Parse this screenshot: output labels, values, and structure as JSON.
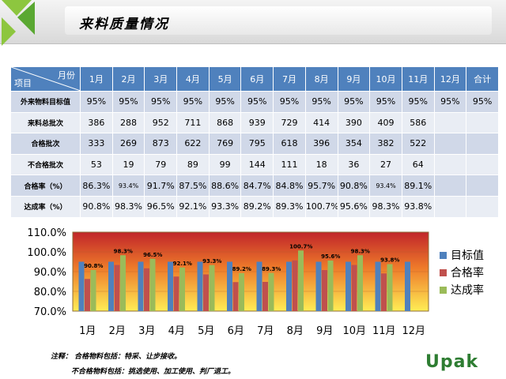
{
  "header": {
    "title": "来料质量情况"
  },
  "table": {
    "corner_top": "月份",
    "corner_bottom": "项目",
    "months": [
      "1月",
      "2月",
      "3月",
      "4月",
      "5月",
      "6月",
      "7月",
      "8月",
      "9月",
      "10月",
      "11月",
      "12月",
      "合计"
    ],
    "rows": [
      {
        "label": "外来物料目标值",
        "cells": [
          "95%",
          "95%",
          "95%",
          "95%",
          "95%",
          "95%",
          "95%",
          "95%",
          "95%",
          "95%",
          "95%",
          "95%",
          "95%"
        ]
      },
      {
        "label": "来料总批次",
        "cells": [
          "386",
          "288",
          "952",
          "711",
          "868",
          "939",
          "729",
          "414",
          "390",
          "409",
          "586",
          "",
          ""
        ]
      },
      {
        "label": "合格批次",
        "cells": [
          "333",
          "269",
          "873",
          "622",
          "769",
          "795",
          "618",
          "396",
          "354",
          "382",
          "522",
          "",
          ""
        ]
      },
      {
        "label": "不合格批次",
        "cells": [
          "53",
          "19",
          "79",
          "89",
          "99",
          "144",
          "111",
          "18",
          "36",
          "27",
          "64",
          "",
          ""
        ]
      },
      {
        "label": "合格率（%）",
        "cells": [
          "86.3%",
          "93.4%",
          "91.7%",
          "87.5%",
          "88.6%",
          "84.7%",
          "84.8%",
          "95.7%",
          "90.8%",
          "93.4%",
          "89.1%",
          "",
          ""
        ]
      },
      {
        "label": "达成率（%）",
        "cells": [
          "90.8%",
          "98.3%",
          "96.5%",
          "92.1%",
          "93.3%",
          "89.2%",
          "89.3%",
          "100.7%",
          "95.6%",
          "98.3%",
          "93.8%",
          "",
          ""
        ]
      }
    ]
  },
  "chart_data": {
    "type": "bar",
    "categories": [
      "1月",
      "2月",
      "3月",
      "4月",
      "5月",
      "6月",
      "7月",
      "8月",
      "9月",
      "10月",
      "11月",
      "12月"
    ],
    "ylim": [
      70,
      110
    ],
    "yticks": [
      "70.0%",
      "80.0%",
      "90.0%",
      "100.0%",
      "110.0%"
    ],
    "series": [
      {
        "name": "目标值",
        "color": "#4f81bd",
        "values": [
          95,
          95,
          95,
          95,
          95,
          95,
          95,
          95,
          95,
          95,
          95,
          95
        ]
      },
      {
        "name": "合格率",
        "color": "#c0504d",
        "values": [
          86.3,
          93.4,
          91.7,
          87.5,
          88.6,
          84.7,
          84.8,
          95.7,
          90.8,
          93.4,
          89.1,
          null
        ]
      },
      {
        "name": "达成率",
        "color": "#9bbb59",
        "values": [
          90.8,
          98.3,
          96.5,
          92.1,
          93.3,
          89.2,
          89.3,
          100.7,
          95.6,
          98.3,
          93.8,
          null
        ]
      }
    ],
    "data_labels": [
      "90.8%",
      "98.3%",
      "96.5%",
      "92.1%",
      "93.3%",
      "89.2%",
      "89.3%",
      "100.7%",
      "95.6%",
      "98.3%",
      "93.8%",
      ""
    ],
    "legend_position": "right"
  },
  "notes": {
    "line1": "注释： 合格物料包括：特采、让步接收。",
    "line2": "不合格物料包括：挑选使用、加工使用、判厂退工。"
  },
  "brand": "Upak"
}
